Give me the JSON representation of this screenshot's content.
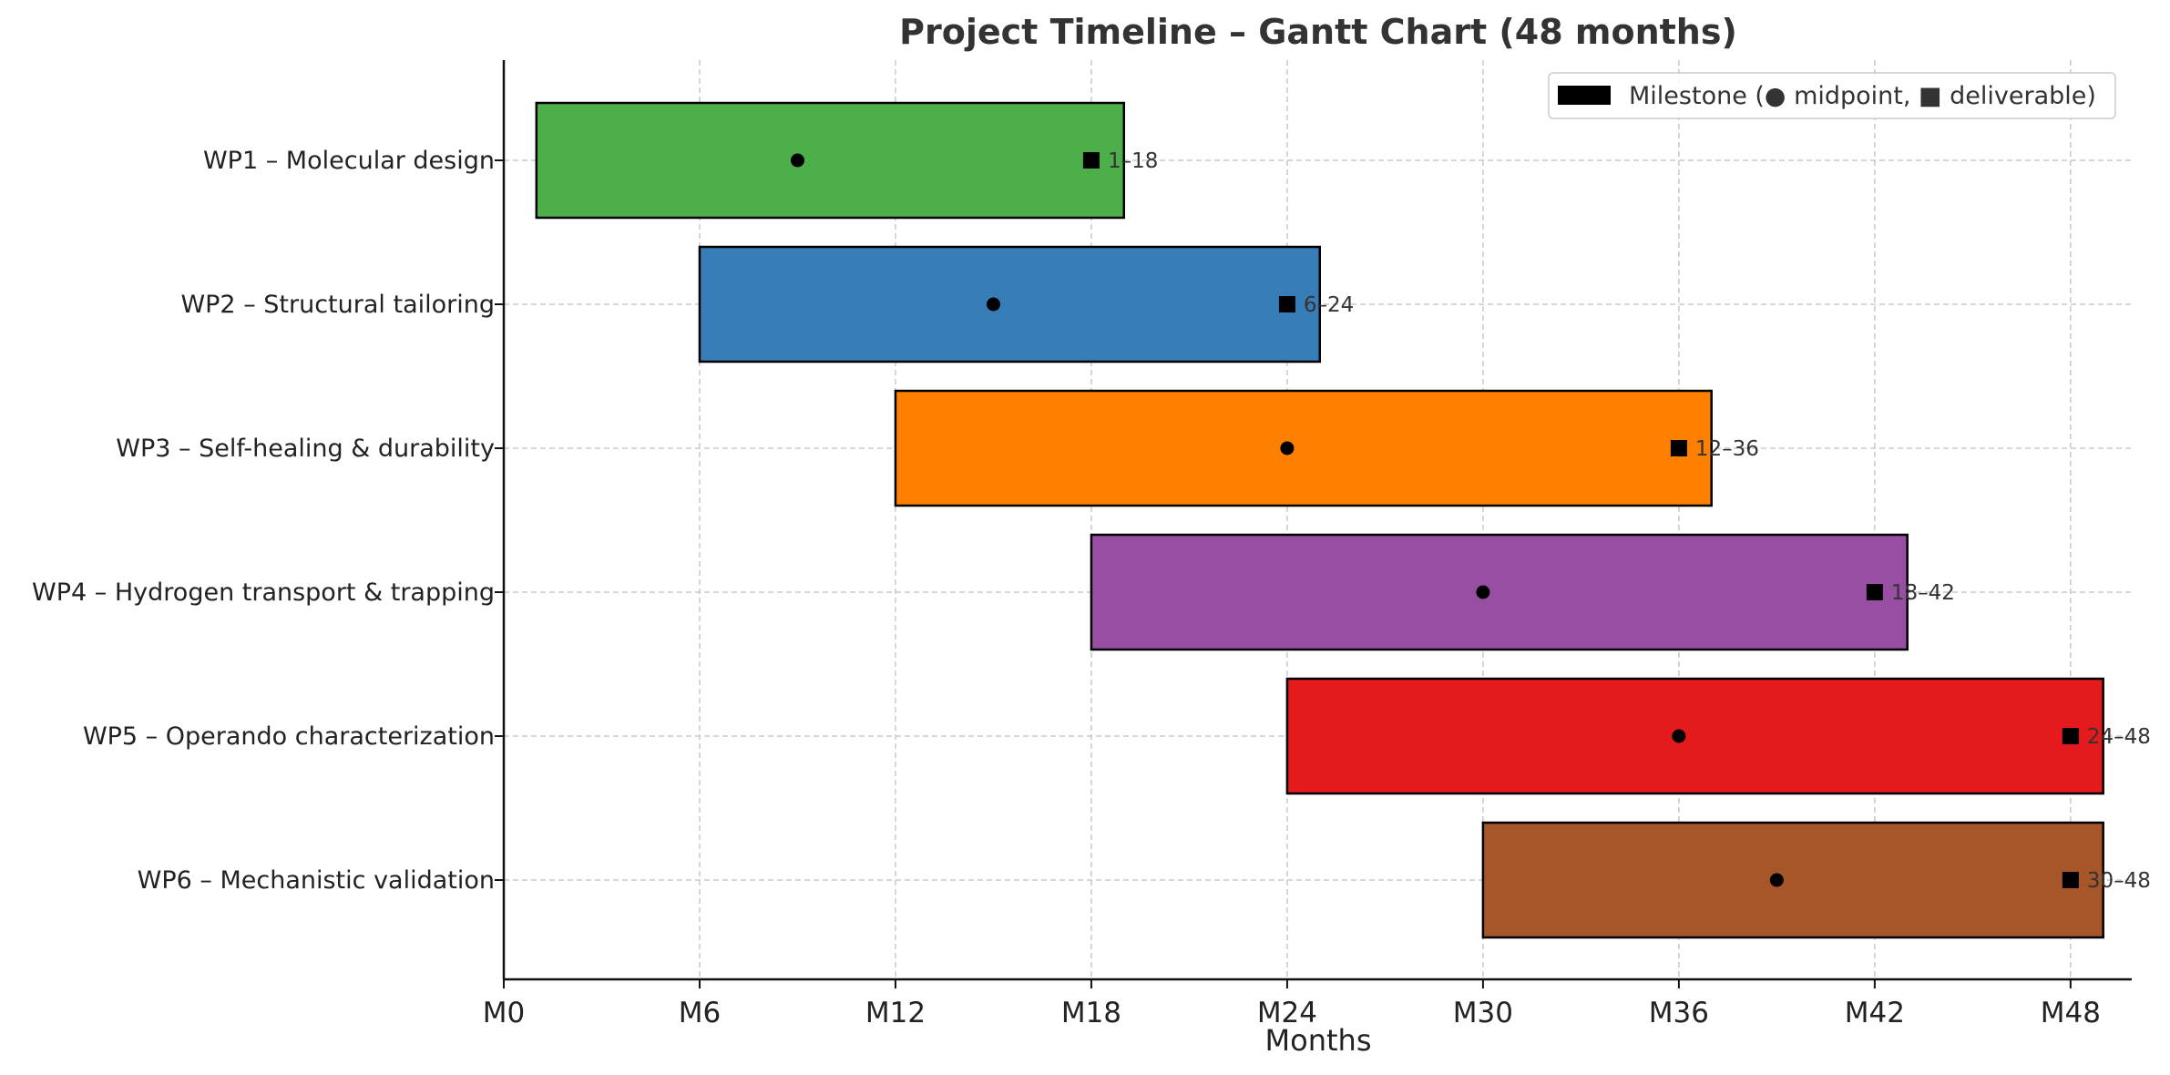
{
  "chart_data": {
    "type": "gantt",
    "title": "Project Timeline – Gantt Chart (48 months)",
    "xlabel": "Months",
    "ylabel": "",
    "xlim": [
      0,
      50
    ],
    "xticks": [
      0,
      6,
      12,
      18,
      24,
      30,
      36,
      42,
      48
    ],
    "xtick_labels": [
      "M0",
      "M6",
      "M12",
      "M18",
      "M24",
      "M30",
      "M36",
      "M42",
      "M48"
    ],
    "grid": true,
    "legend": {
      "placement": "top-right",
      "label": "Milestone (● midpoint, ■ deliverable)"
    },
    "tasks": [
      {
        "name": "WP1 – Molecular design",
        "start": 1,
        "end": 19,
        "midpoint": 9,
        "deliverable": 18,
        "range_label": "1–18",
        "color": "#4daf4a"
      },
      {
        "name": "WP2 – Structural tailoring",
        "start": 6,
        "end": 25,
        "midpoint": 15,
        "deliverable": 24,
        "range_label": "6–24",
        "color": "#377eb8"
      },
      {
        "name": "WP3 – Self-healing & durability",
        "start": 12,
        "end": 37,
        "midpoint": 24,
        "deliverable": 36,
        "range_label": "12–36",
        "color": "#ff7f00"
      },
      {
        "name": "WP4 – Hydrogen transport & trapping",
        "start": 18,
        "end": 43,
        "midpoint": 30,
        "deliverable": 42,
        "range_label": "18–42",
        "color": "#984ea3"
      },
      {
        "name": "WP5 – Operando characterization",
        "start": 24,
        "end": 49,
        "midpoint": 36,
        "deliverable": 48,
        "range_label": "24–48",
        "color": "#e41a1c"
      },
      {
        "name": "WP6 – Mechanistic validation",
        "start": 30,
        "end": 49,
        "midpoint": 39,
        "deliverable": 48,
        "range_label": "30–48",
        "color": "#a65628"
      }
    ]
  }
}
